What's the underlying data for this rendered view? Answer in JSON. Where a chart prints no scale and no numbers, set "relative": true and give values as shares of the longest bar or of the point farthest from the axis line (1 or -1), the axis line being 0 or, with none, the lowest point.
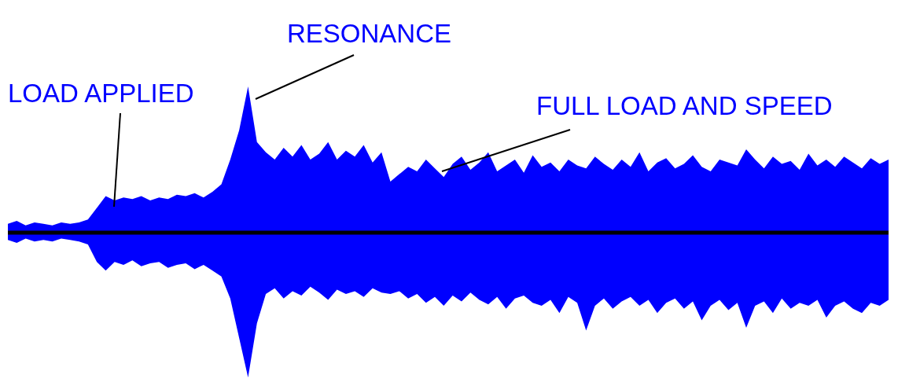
{
  "chart_data": {
    "type": "area",
    "relative": true,
    "categories": [
      null,
      null,
      null,
      null,
      null,
      null,
      null,
      null,
      null,
      null,
      null,
      null,
      null,
      null,
      null,
      null,
      null,
      null,
      null,
      null,
      null,
      null,
      null,
      null,
      null,
      null,
      null,
      null,
      null,
      null,
      null,
      null,
      null,
      null,
      null,
      null,
      null,
      null,
      null,
      null,
      null,
      null,
      null,
      null,
      null,
      null,
      null,
      null,
      null,
      null,
      null,
      null,
      null,
      null,
      null,
      null,
      null,
      null,
      null,
      null,
      null,
      null,
      null,
      null,
      null,
      null,
      null,
      null,
      null,
      null,
      null,
      null,
      null,
      null,
      null,
      null,
      null,
      null,
      null,
      null,
      null,
      null,
      null,
      null,
      null,
      null,
      null,
      null,
      null,
      null,
      null,
      null,
      null,
      null,
      null,
      null,
      null,
      null,
      null,
      null
    ],
    "series": [
      {
        "color": "#0000ff",
        "values": [
          0.06,
          0.08,
          0.05,
          0.07,
          0.06,
          0.05,
          0.07,
          0.06,
          0.07,
          0.09,
          0.17,
          0.25,
          0.22,
          0.24,
          0.23,
          0.25,
          0.22,
          0.24,
          0.23,
          0.26,
          0.25,
          0.27,
          0.24,
          0.28,
          0.33,
          0.5,
          0.7,
          1.0,
          0.62,
          0.55,
          0.5,
          0.58,
          0.52,
          0.6,
          0.5,
          0.54,
          0.62,
          0.5,
          0.56,
          0.52,
          0.6,
          0.48,
          0.55,
          0.35,
          0.4,
          0.45,
          0.42,
          0.5,
          0.44,
          0.38,
          0.47,
          0.52,
          0.43,
          0.48,
          0.55,
          0.42,
          0.46,
          0.5,
          0.41,
          0.53,
          0.45,
          0.48,
          0.42,
          0.5,
          0.46,
          0.44,
          0.52,
          0.47,
          0.43,
          0.5,
          0.45,
          0.55,
          0.42,
          0.48,
          0.51,
          0.44,
          0.47,
          0.53,
          0.45,
          0.42,
          0.5,
          0.48,
          0.46,
          0.57,
          0.5,
          0.44,
          0.52,
          0.47,
          0.49,
          0.43,
          0.54,
          0.46,
          0.5,
          0.45,
          0.52,
          0.48,
          0.44,
          0.51,
          0.47,
          0.5
        ]
      },
      {
        "color": "#0000ff",
        "values": [
          -0.05,
          -0.07,
          -0.04,
          -0.06,
          -0.05,
          -0.06,
          -0.04,
          -0.05,
          -0.06,
          -0.08,
          -0.2,
          -0.26,
          -0.2,
          -0.22,
          -0.19,
          -0.23,
          -0.21,
          -0.2,
          -0.24,
          -0.22,
          -0.21,
          -0.25,
          -0.22,
          -0.26,
          -0.3,
          -0.45,
          -0.72,
          -0.99,
          -0.62,
          -0.42,
          -0.38,
          -0.45,
          -0.4,
          -0.43,
          -0.37,
          -0.41,
          -0.46,
          -0.39,
          -0.42,
          -0.4,
          -0.44,
          -0.38,
          -0.41,
          -0.42,
          -0.4,
          -0.45,
          -0.42,
          -0.48,
          -0.44,
          -0.5,
          -0.43,
          -0.47,
          -0.41,
          -0.46,
          -0.49,
          -0.44,
          -0.52,
          -0.45,
          -0.43,
          -0.48,
          -0.5,
          -0.46,
          -0.55,
          -0.44,
          -0.48,
          -0.67,
          -0.5,
          -0.45,
          -0.52,
          -0.47,
          -0.44,
          -0.5,
          -0.46,
          -0.55,
          -0.48,
          -0.45,
          -0.52,
          -0.47,
          -0.6,
          -0.5,
          -0.46,
          -0.53,
          -0.48,
          -0.65,
          -0.5,
          -0.47,
          -0.55,
          -0.45,
          -0.52,
          -0.48,
          -0.5,
          -0.46,
          -0.58,
          -0.5,
          -0.47,
          -0.52,
          -0.55,
          -0.48,
          -0.5,
          -0.46
        ]
      }
    ],
    "annotations": [
      "LOAD APPLIED",
      "RESONANCE",
      "FULL LOAD AND SPEED"
    ]
  }
}
